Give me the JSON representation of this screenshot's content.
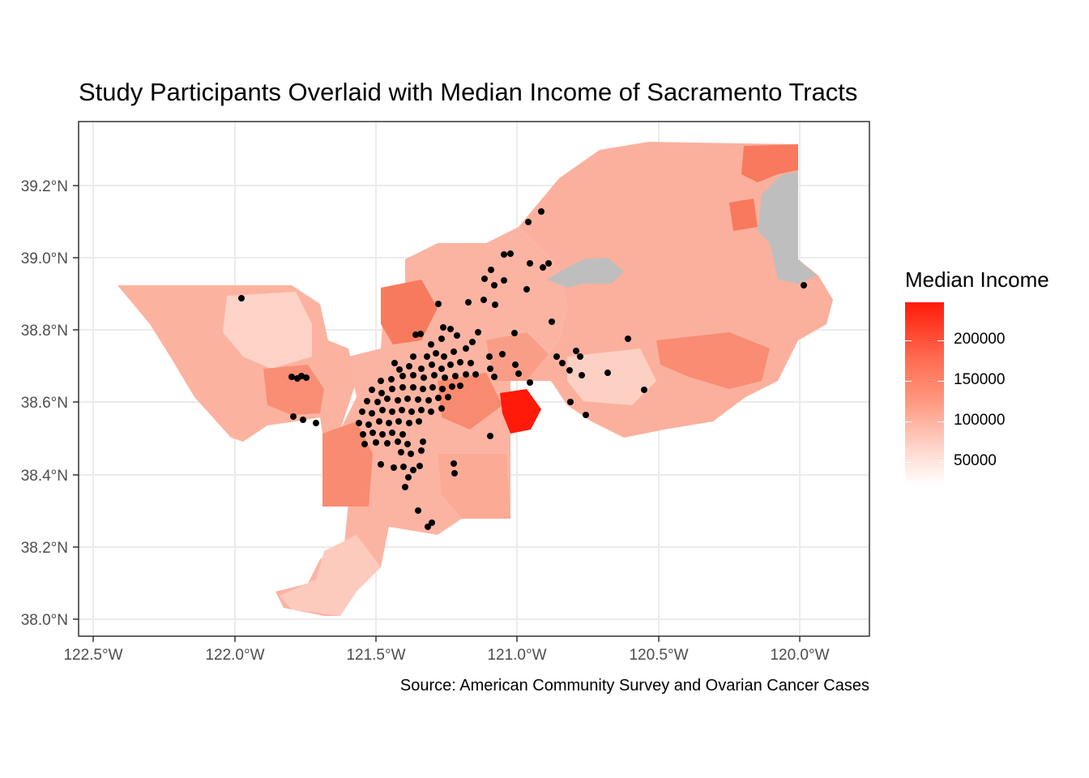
{
  "title": "Study Participants Overlaid with Median Income of Sacramento Tracts",
  "caption": "Source: American Community Survey and Ovarian Cancer Cases",
  "legend": {
    "title": "Median Income",
    "labels": [
      "200000",
      "150000",
      "100000",
      "50000"
    ]
  },
  "axes": {
    "x_ticks": [
      "122.5°W",
      "122.0°W",
      "121.5°W",
      "121.0°W",
      "120.5°W",
      "120.0°W"
    ],
    "y_ticks": [
      "39.2°N",
      "39.0°N",
      "38.8°N",
      "38.6°N",
      "38.4°N",
      "38.2°N",
      "38.0°N"
    ]
  },
  "colors": {
    "low": "#ffffff",
    "high": "#ff1a0a",
    "missing": "#bebebe",
    "points": "#000000",
    "grid": "#ebebeb"
  }
}
